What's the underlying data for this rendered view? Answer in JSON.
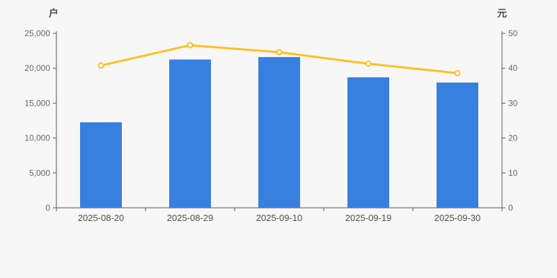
{
  "chart": {
    "background": "#f7f7f7",
    "axis_line_color": "#555555",
    "tick_label_color": "#666666",
    "x_label_color": "#4d4d4d",
    "unit_label_color": "#4a4a4a",
    "left_axis": {
      "unit": "户",
      "min": 0,
      "max": 25000,
      "step": 5000
    },
    "right_axis": {
      "unit": "元",
      "min": 0,
      "max": 50,
      "step": 10
    }
  },
  "chart_data": {
    "type": "combo",
    "categories": [
      "2025-08-20",
      "2025-08-29",
      "2025-09-10",
      "2025-09-19",
      "2025-09-30"
    ],
    "series": [
      {
        "type": "bar",
        "axis": "left",
        "color": "#3780e0",
        "values": [
          12250,
          21250,
          21600,
          18700,
          17950
        ]
      },
      {
        "type": "line",
        "axis": "right",
        "color": "#ffc01e",
        "marker_fill": "#ffffff",
        "values": [
          40.8,
          46.6,
          44.6,
          41.3,
          38.6
        ]
      }
    ],
    "title": "",
    "xlabel": "",
    "ylabel_left": "户",
    "ylabel_right": "元",
    "ylim_left": [
      0,
      25000
    ],
    "ylim_right": [
      0,
      50
    ],
    "grid": false,
    "legend": "none"
  }
}
